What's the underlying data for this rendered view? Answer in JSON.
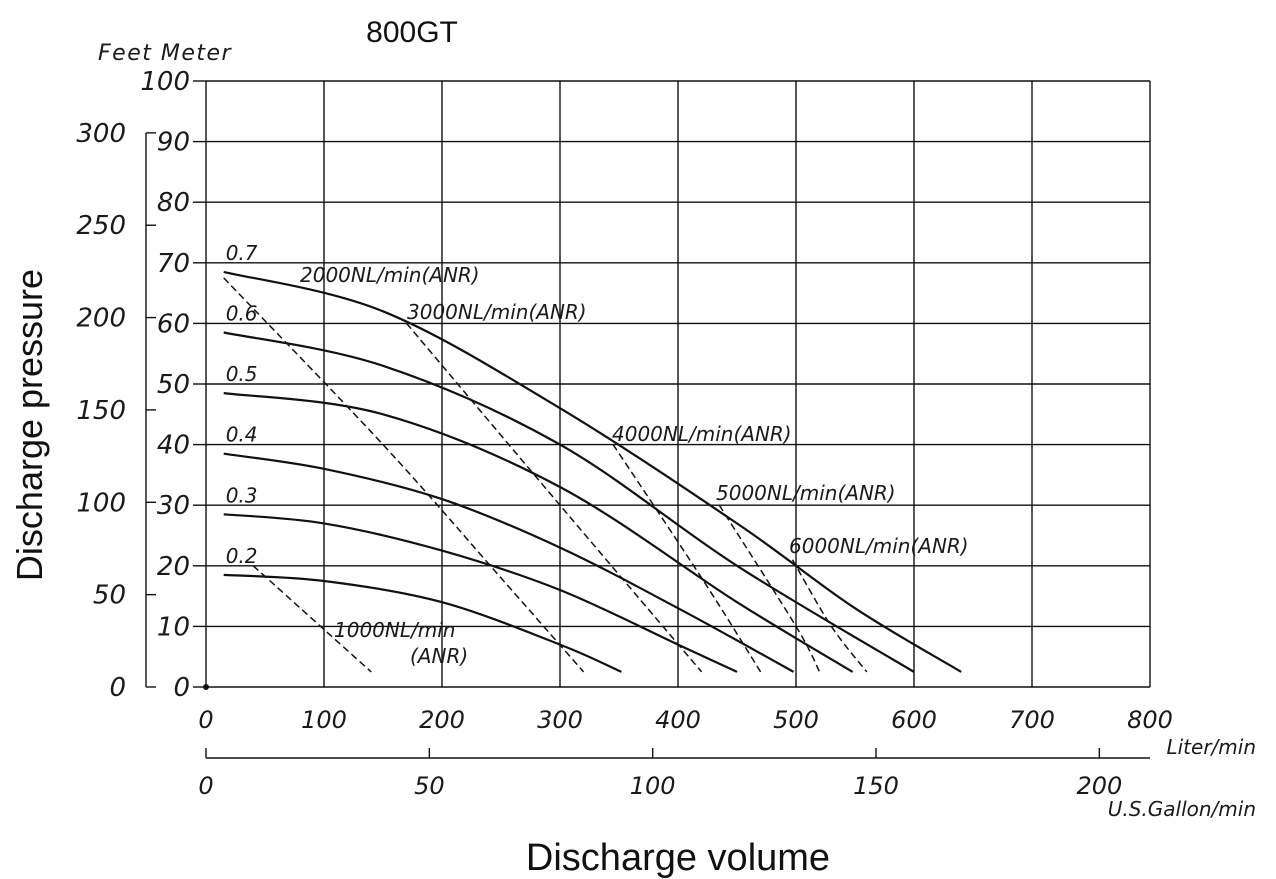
{
  "chart_data": {
    "type": "line",
    "title": "800GT",
    "ylabel": "Discharge pressure",
    "xlabel": "Discharge volume",
    "y_unit_label": "Feet Meter",
    "x_unit_label": "Liter/min",
    "x2_unit_label": "U.S.Gallon/min",
    "xlim": [
      0,
      800
    ],
    "ylim": [
      0,
      100
    ],
    "grid": true,
    "x_ticks": [
      "0",
      "100",
      "200",
      "300",
      "400",
      "500",
      "600",
      "700",
      "800"
    ],
    "y_ticks": [
      "0",
      "10",
      "20",
      "30",
      "40",
      "50",
      "60",
      "70",
      "80",
      "90",
      "100"
    ],
    "feet_ticks": [
      "0",
      "50",
      "100",
      "150",
      "200",
      "250",
      "300"
    ],
    "gallon_ticks": [
      "0",
      "50",
      "100",
      "150",
      "200"
    ],
    "series": [
      {
        "name": "0.7",
        "x": [
          15,
          150,
          300,
          450,
          550,
          640
        ],
        "y": [
          68.5,
          62,
          46,
          27,
          13,
          2.5
        ]
      },
      {
        "name": "0.6",
        "x": [
          15,
          150,
          300,
          450,
          600
        ],
        "y": [
          58.5,
          53,
          40,
          20,
          2.5
        ]
      },
      {
        "name": "0.5",
        "x": [
          15,
          150,
          300,
          450,
          548
        ],
        "y": [
          48.5,
          45,
          33,
          14,
          2.5
        ]
      },
      {
        "name": "0.4",
        "x": [
          15,
          100,
          200,
          300,
          400,
          498
        ],
        "y": [
          38.5,
          36,
          31,
          23,
          13,
          2.5
        ]
      },
      {
        "name": "0.3",
        "x": [
          15,
          100,
          200,
          300,
          400,
          450
        ],
        "y": [
          28.5,
          27,
          22.5,
          16,
          7,
          2.5
        ]
      },
      {
        "name": "0.2",
        "x": [
          15,
          100,
          200,
          300,
          352
        ],
        "y": [
          18.5,
          17.5,
          14,
          7,
          2.5
        ]
      }
    ],
    "air_lines": [
      {
        "label": "1000NL/min(ANR)",
        "x": [
          40,
          140
        ],
        "y": [
          20,
          2.5
        ]
      },
      {
        "label": "2000NL/min(ANR)",
        "x": [
          15,
          150,
          250,
          320
        ],
        "y": [
          67.5,
          40,
          18,
          2.5
        ]
      },
      {
        "label": "3000NL/min(ANR)",
        "x": [
          170,
          300,
          420
        ],
        "y": [
          60,
          30,
          2.5
        ]
      },
      {
        "label": "4000NL/min(ANR)",
        "x": [
          345,
          420,
          470
        ],
        "y": [
          40,
          18,
          2.5
        ]
      },
      {
        "label": "5000NL/min(ANR)",
        "x": [
          435,
          500,
          520
        ],
        "y": [
          30,
          10,
          2.5
        ]
      },
      {
        "label": "6000NL/min(ANR)",
        "x": [
          497,
          530,
          560
        ],
        "y": [
          21,
          10,
          2.5
        ]
      }
    ]
  }
}
